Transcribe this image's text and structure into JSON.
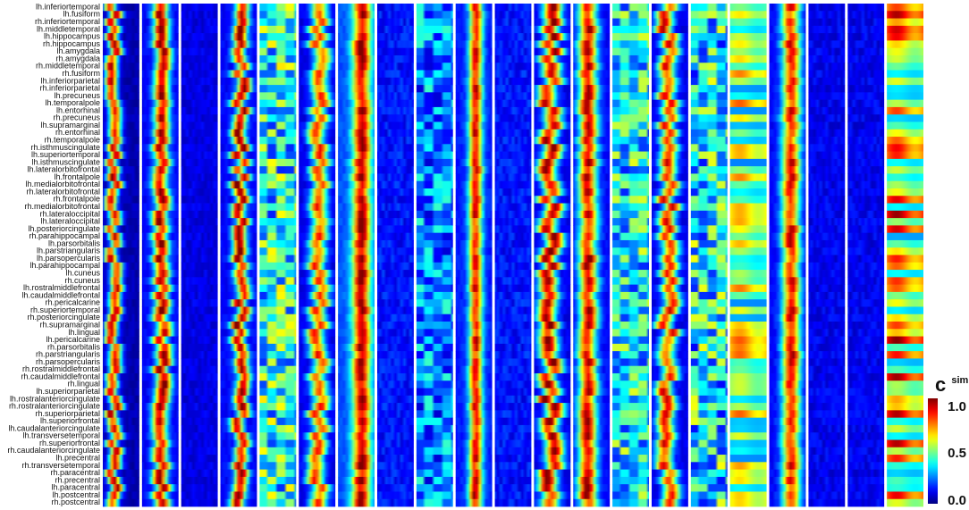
{
  "chart_data": {
    "type": "heatmap",
    "title": "",
    "xlabel": "",
    "ylabel": "",
    "rows": [
      "lh.inferiortemporal",
      "lh.fusiform",
      "rh.inferiortemporal",
      "lh.middletemporal",
      "lh.hippocampus",
      "rh.hippocampus",
      "lh.amygdala",
      "rh.amygdala",
      "rh.middletemporal",
      "rh.fusiform",
      "lh.inferiorparietal",
      "rh.inferiorparietal",
      "lh.precuneus",
      "lh.temporalpole",
      "lh.entorhinal",
      "rh.precuneus",
      "lh.supramarginal",
      "rh.entorhinal",
      "rh.temporalpole",
      "rh.isthmuscingulate",
      "lh.superiortemporal",
      "lh.isthmuscingulate",
      "lh.lateralorbitofrontal",
      "lh.frontalpole",
      "lh.medialorbitofrontal",
      "rh.lateralorbitofrontal",
      "rh.frontalpole",
      "rh.medialorbitofrontal",
      "rh.lateraloccipital",
      "lh.lateraloccipital",
      "lh.posteriorcingulate",
      "rh.parahippocampal",
      "lh.parsorbitalis",
      "lh.parstriangularis",
      "lh.parsopercularis",
      "lh.parahippocampal",
      "lh.cuneus",
      "rh.cuneus",
      "lh.rostralmiddlefrontal",
      "lh.caudalmiddlefrontal",
      "rh.pericalcarine",
      "rh.superiortemporal",
      "rh.posteriorcingulate",
      "rh.supramarginal",
      "lh.lingual",
      "lh.pericalcarine",
      "rh.parsorbitalis",
      "rh.parstriangularis",
      "rh.parsopercularis",
      "rh.rostralmiddlefrontal",
      "rh.caudalmiddlefrontal",
      "rh.lingual",
      "lh.superiorparietal",
      "lh.rostralanteriorcingulate",
      "rh.rostralanteriorcingulate",
      "rh.superiorparietal",
      "lh.superiorfrontal",
      "lh.caudalanteriorcingulate",
      "lh.transversetemporal",
      "rh.superiorfrontal",
      "rh.caudalanteriorcingulate",
      "lh.precentral",
      "rh.transversetemporal",
      "rh.paracentral",
      "rh.precentral",
      "lh.paracentral",
      "lh.postcentral",
      "rh.postcentral"
    ],
    "panels": [
      {
        "mode": "peak",
        "center": 0.3,
        "width": 0.38,
        "jitter": 0.22,
        "base": 0.05,
        "amp": 0.95
      },
      {
        "mode": "peak",
        "center": 0.55,
        "width": 0.45,
        "jitter": 0.18,
        "base": 0.12,
        "amp": 0.95
      },
      {
        "mode": "flat",
        "base": 0.06,
        "amp": 0.08
      },
      {
        "mode": "peak",
        "center": 0.55,
        "width": 0.4,
        "jitter": 0.25,
        "base": 0.12,
        "amp": 0.95
      },
      {
        "mode": "patchy",
        "base": 0.15,
        "amp": 0.5
      },
      {
        "mode": "peak",
        "center": 0.55,
        "width": 0.5,
        "jitter": 0.25,
        "base": 0.1,
        "amp": 0.8
      },
      {
        "mode": "peak",
        "center": 0.65,
        "width": 0.55,
        "jitter": 0.06,
        "base": 0.2,
        "amp": 0.85
      },
      {
        "mode": "flat",
        "base": 0.08,
        "amp": 0.12
      },
      {
        "mode": "patchy",
        "base": 0.08,
        "amp": 0.35
      },
      {
        "mode": "peak",
        "center": 0.55,
        "width": 0.4,
        "jitter": 0.06,
        "base": 0.15,
        "amp": 0.85
      },
      {
        "mode": "flat",
        "base": 0.08,
        "amp": 0.12
      },
      {
        "mode": "peak",
        "center": 0.45,
        "width": 0.55,
        "jitter": 0.3,
        "base": 0.1,
        "amp": 0.95
      },
      {
        "mode": "peak",
        "center": 0.4,
        "width": 0.55,
        "jitter": 0.1,
        "base": 0.12,
        "amp": 0.9
      },
      {
        "mode": "patchy",
        "base": 0.15,
        "amp": 0.45
      },
      {
        "mode": "peak",
        "center": 0.45,
        "width": 0.5,
        "jitter": 0.3,
        "base": 0.1,
        "amp": 0.85
      },
      {
        "mode": "patchy",
        "base": 0.12,
        "amp": 0.5
      },
      {
        "mode": "band",
        "base": 0.25,
        "amp": 0.55
      },
      {
        "mode": "peak",
        "center": 0.6,
        "width": 0.55,
        "jitter": 0.08,
        "base": 0.12,
        "amp": 0.85
      },
      {
        "mode": "flat",
        "base": 0.06,
        "amp": 0.1
      },
      {
        "mode": "flat",
        "base": 0.06,
        "amp": 0.1
      },
      {
        "mode": "band",
        "base": 0.25,
        "amp": 0.75
      }
    ],
    "colorbar": {
      "label": "c",
      "label_sup": "sim",
      "ticks": [
        "1.0",
        "0.5",
        "0.0"
      ],
      "min": 0.0,
      "max": 1.0,
      "colormap": "jet"
    },
    "colors": {
      "separator": "#ffffff",
      "background": "#ffffff"
    }
  }
}
